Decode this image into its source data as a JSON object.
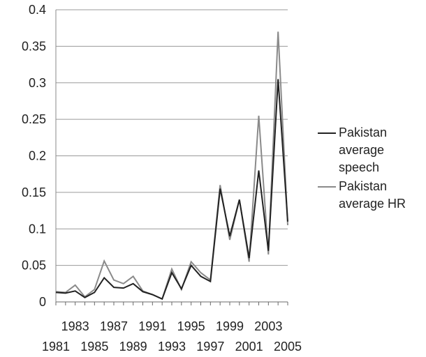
{
  "chart_data": {
    "type": "line",
    "title": "",
    "xlabel": "",
    "ylabel": "",
    "ylim": [
      0,
      0.4
    ],
    "yticks": [
      "0",
      "0.05",
      "0.1",
      "0.15",
      "0.2",
      "0.25",
      "0.3",
      "0.35",
      "0.4"
    ],
    "xticks_upper": [
      "1983",
      "1987",
      "1991",
      "1995",
      "1999",
      "2003"
    ],
    "xticks_lower": [
      "1981",
      "1985",
      "1989",
      "1993",
      "1997",
      "2001",
      "2005"
    ],
    "grid": "horizontal",
    "legend_position": "right",
    "x": [
      1981,
      1982,
      1983,
      1984,
      1985,
      1986,
      1987,
      1988,
      1989,
      1990,
      1991,
      1992,
      1993,
      1994,
      1995,
      1996,
      1997,
      1998,
      1999,
      2000,
      2001,
      2002,
      2003,
      2004,
      2005
    ],
    "series": [
      {
        "name": "Pakistan average speech",
        "color": "#222222",
        "values": [
          0.013,
          0.012,
          0.015,
          0.006,
          0.013,
          0.033,
          0.02,
          0.019,
          0.025,
          0.014,
          0.01,
          0.004,
          0.04,
          0.018,
          0.05,
          0.035,
          0.028,
          0.155,
          0.09,
          0.14,
          0.06,
          0.18,
          0.07,
          0.305,
          0.11
        ]
      },
      {
        "name": "Pakistan average HR",
        "color": "#8a8a8a",
        "values": [
          0.014,
          0.013,
          0.023,
          0.007,
          0.017,
          0.056,
          0.03,
          0.025,
          0.035,
          0.015,
          0.01,
          0.004,
          0.045,
          0.017,
          0.055,
          0.04,
          0.03,
          0.16,
          0.085,
          0.14,
          0.055,
          0.255,
          0.065,
          0.37,
          0.105
        ]
      }
    ]
  }
}
